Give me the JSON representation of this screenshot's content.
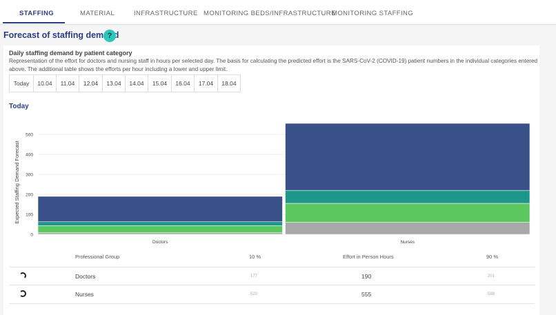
{
  "tabs": [
    {
      "label": "STAFFING",
      "active": true
    },
    {
      "label": "MATERIAL",
      "active": false
    },
    {
      "label": "INFRASTRUCTURE",
      "active": false
    },
    {
      "label": "MONITORING BEDS/INFRASTRUCTURE",
      "active": false
    },
    {
      "label": "MONITORING STAFFING",
      "active": false
    }
  ],
  "section": {
    "title": "Forecast of staffing demand",
    "help": "?"
  },
  "panel": {
    "heading": "Daily staffing demand by patient category",
    "description": "Representation of the effort for doctors and nursing staff in hours per selected day. The basis for calculating the predicted effort is the SARS-CoV-2 (COVID-19) patient numbers in the individual categories entered above. The additional table shows the efforts per hour including a lower and upper limit."
  },
  "days": [
    "Today",
    "10.04",
    "11.04",
    "12.04",
    "13.04",
    "14.04",
    "15.04",
    "16.04",
    "17.04",
    "18.04"
  ],
  "chart_title": "Today",
  "chart_data": {
    "type": "bar",
    "stacked": true,
    "categories": [
      "Doctors",
      "Nurses"
    ],
    "series": [
      {
        "values": [
          8,
          60
        ],
        "color": "#a8a8a8"
      },
      {
        "values": [
          35,
          95
        ],
        "color": "#5ac85f"
      },
      {
        "values": [
          20,
          65
        ],
        "color": "#1f968c"
      },
      {
        "values": [
          127,
          335
        ],
        "color": "#3a5089"
      }
    ],
    "ylabel": "Expected Staffing Demand Forecast",
    "yticks": [
      0,
      100,
      200,
      300,
      400,
      500
    ],
    "ylim": [
      0,
      555
    ],
    "grid": true
  },
  "table": {
    "headers": [
      "Professional Group",
      "10 %",
      "Effort in Person Hours",
      "90 %"
    ],
    "rows": [
      {
        "group": "Doctors",
        "p10": "177",
        "effort": "190",
        "p90": "201"
      },
      {
        "group": "Nurses",
        "p10": "520",
        "effort": "555",
        "p90": "588"
      }
    ]
  },
  "colors": {
    "primary": "#2b3e84",
    "accent": "#2bc7b8"
  }
}
